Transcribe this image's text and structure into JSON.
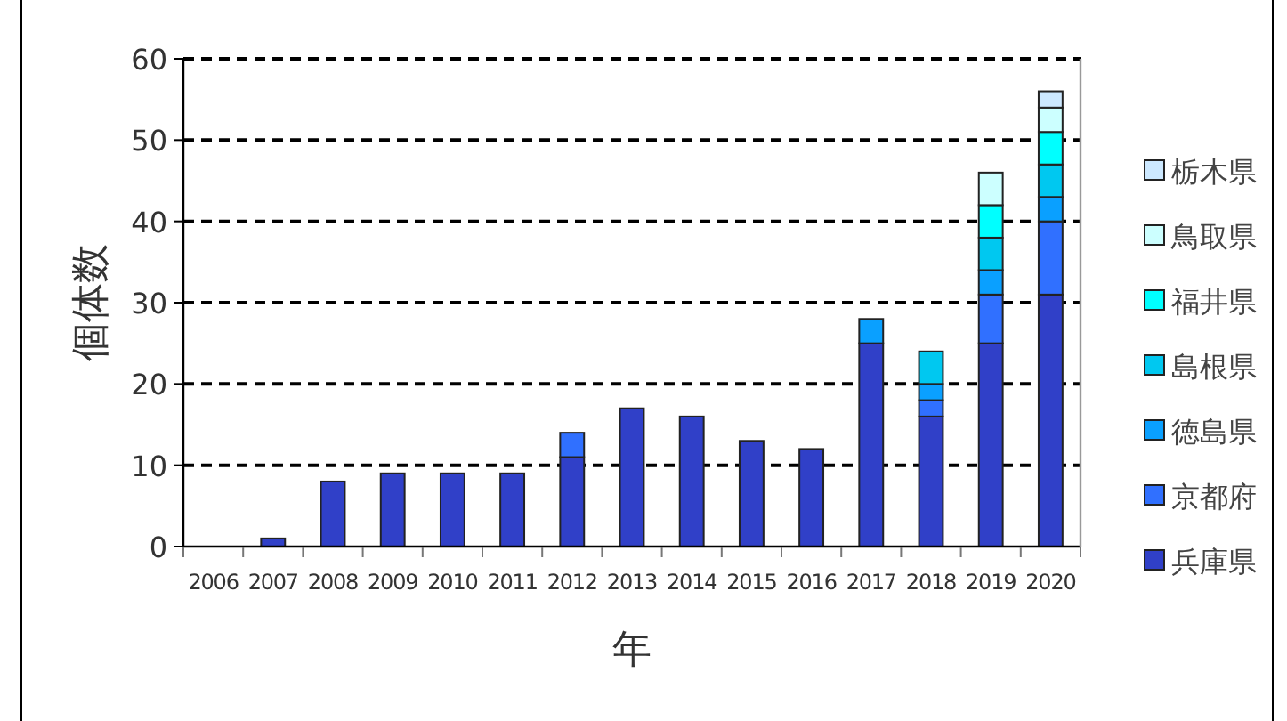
{
  "chart_data": {
    "type": "bar",
    "stacked": true,
    "xlabel": "年",
    "ylabel": "個体数",
    "categories": [
      "2006",
      "2007",
      "2008",
      "2009",
      "2010",
      "2011",
      "2012",
      "2013",
      "2014",
      "2015",
      "2016",
      "2017",
      "2018",
      "2019",
      "2020"
    ],
    "series": [
      {
        "name": "兵庫県",
        "color": "#3040c8",
        "values": [
          0,
          1,
          8,
          9,
          9,
          9,
          11,
          17,
          16,
          13,
          12,
          25,
          16,
          25,
          31
        ]
      },
      {
        "name": "京都府",
        "color": "#3070ff",
        "values": [
          0,
          0,
          0,
          0,
          0,
          0,
          3,
          0,
          0,
          0,
          0,
          0,
          2,
          6,
          9
        ]
      },
      {
        "name": "徳島県",
        "color": "#0aa0ff",
        "values": [
          0,
          0,
          0,
          0,
          0,
          0,
          0,
          0,
          0,
          0,
          0,
          3,
          2,
          3,
          3
        ]
      },
      {
        "name": "島根県",
        "color": "#00c8f0",
        "values": [
          0,
          0,
          0,
          0,
          0,
          0,
          0,
          0,
          0,
          0,
          0,
          0,
          4,
          4,
          4
        ]
      },
      {
        "name": "福井県",
        "color": "#00ffff",
        "values": [
          0,
          0,
          0,
          0,
          0,
          0,
          0,
          0,
          0,
          0,
          0,
          0,
          0,
          4,
          4
        ]
      },
      {
        "name": "鳥取県",
        "color": "#ccffff",
        "values": [
          0,
          0,
          0,
          0,
          0,
          0,
          0,
          0,
          0,
          0,
          0,
          0,
          0,
          4,
          3
        ]
      },
      {
        "name": "栃木県",
        "color": "#cce8ff",
        "values": [
          0,
          0,
          0,
          0,
          0,
          0,
          0,
          0,
          0,
          0,
          0,
          0,
          0,
          0,
          2
        ]
      }
    ],
    "ylim": [
      0,
      60
    ],
    "yticks": [
      0,
      10,
      20,
      30,
      40,
      50,
      60
    ],
    "grid": "y",
    "line_style": "dashed",
    "legend": "right"
  }
}
